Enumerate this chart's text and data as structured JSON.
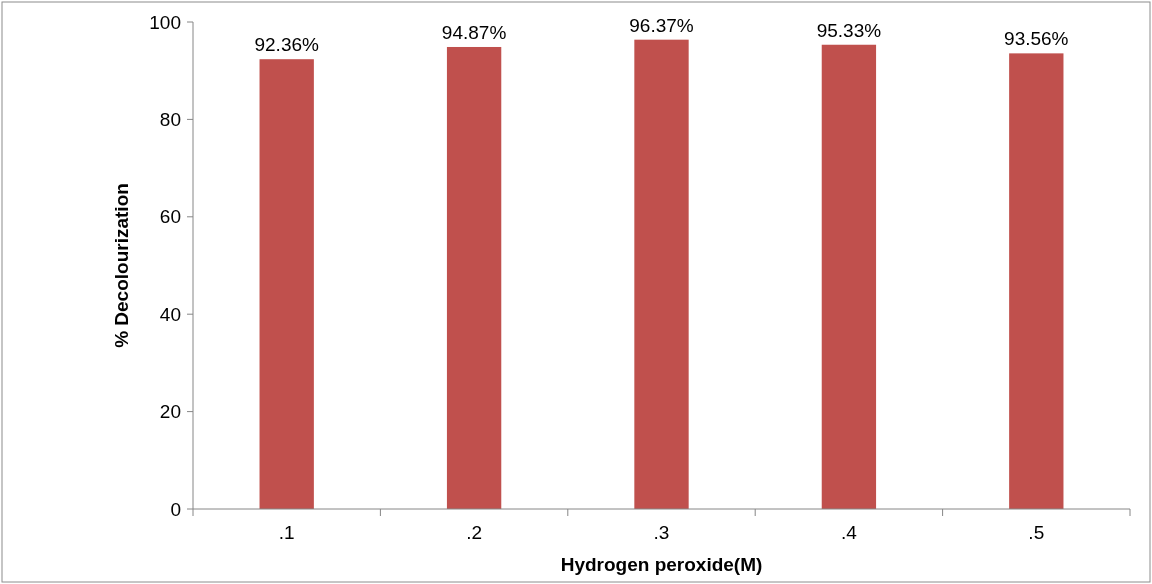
{
  "chart_data": {
    "type": "bar",
    "xlabel": "Hydrogen peroxide(M)",
    "ylabel": "% Decolourization",
    "categories": [
      ".1",
      ".2",
      ".3",
      ".4",
      ".5"
    ],
    "values": [
      92.36,
      94.87,
      96.37,
      95.33,
      93.56
    ],
    "value_labels": [
      "92.36%",
      "94.87%",
      "96.37%",
      "95.33%",
      "93.56%"
    ],
    "color": "#c0504d",
    "ylim": [
      0,
      100
    ],
    "yticks": [
      0,
      20,
      40,
      60,
      80,
      100
    ],
    "grid": false
  }
}
